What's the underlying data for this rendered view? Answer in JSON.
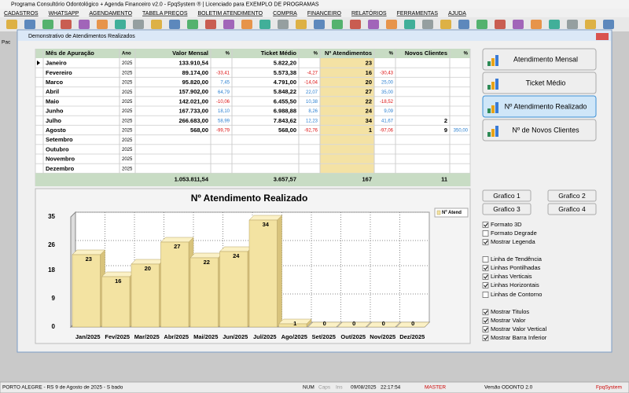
{
  "window": {
    "title": "Programa Consultório Odontológico + Agenda Financeiro v2.0 - FpqSystem ® | Licenciado para  EXEMPLO DE PROGRAMAS"
  },
  "menu": [
    "CADASTROS",
    "WHATSAPP",
    "AGENDAMENTO",
    "TABELA PREÇOS",
    "BOLETIM ATENDIMENTO",
    "COMPRA",
    "FINANCEIRO",
    "RELATÓRIOS",
    "FERRAMENTAS",
    "AJUDA"
  ],
  "toolbar_label": "Pac",
  "dialog": {
    "title": "Demonstrativo de Atendimentos Realizados"
  },
  "table": {
    "headers": [
      "Mês de Apuração",
      "Ano",
      "Valor Mensal",
      "%",
      "Ticket Médio",
      "%",
      "Nº Atendimentos",
      "%",
      "Novos Clientes",
      "%"
    ],
    "rows": [
      [
        "Janeiro",
        "2025",
        "133.910,54",
        null,
        "5.822,20",
        null,
        "23",
        null,
        null,
        null
      ],
      [
        "Fevereiro",
        "2025",
        "89.174,00",
        "-33,41",
        "5.573,38",
        "-4,27",
        "16",
        "-30,43",
        null,
        null
      ],
      [
        "Marco",
        "2025",
        "95.820,00",
        "7,45",
        "4.791,00",
        "-14,04",
        "20",
        "25,00",
        null,
        null
      ],
      [
        "Abril",
        "2025",
        "157.902,00",
        "64,79",
        "5.848,22",
        "22,07",
        "27",
        "35,00",
        null,
        null
      ],
      [
        "Maio",
        "2025",
        "142.021,00",
        "-10,06",
        "6.455,50",
        "10,38",
        "22",
        "-18,52",
        null,
        null
      ],
      [
        "Junho",
        "2025",
        "167.733,00",
        "18,10",
        "6.988,88",
        "8,26",
        "24",
        "9,09",
        null,
        null
      ],
      [
        "Julho",
        "2025",
        "266.683,00",
        "58,99",
        "7.843,62",
        "12,23",
        "34",
        "41,67",
        "2",
        null
      ],
      [
        "Agosto",
        "2025",
        "568,00",
        "-99,79",
        "568,00",
        "-92,76",
        "1",
        "-97,06",
        "9",
        "350,00"
      ],
      [
        "Setembro",
        "2025",
        null,
        null,
        null,
        null,
        null,
        null,
        null,
        null
      ],
      [
        "Outubro",
        "2025",
        null,
        null,
        null,
        null,
        null,
        null,
        null,
        null
      ],
      [
        "Novembro",
        "2025",
        null,
        null,
        null,
        null,
        null,
        null,
        null,
        null
      ],
      [
        "Dezembro",
        "2025",
        null,
        null,
        null,
        null,
        null,
        null,
        null,
        null
      ]
    ],
    "totals": [
      null,
      null,
      "1.053.811,54",
      null,
      "3.657,57",
      null,
      "167",
      null,
      "11",
      null
    ]
  },
  "chart_data": {
    "type": "bar",
    "title": "Nº Atendimento Realizado",
    "categories": [
      "Jan/2025",
      "Fev/2025",
      "Mar/2025",
      "Abr/2025",
      "Mai/2025",
      "Jun/2025",
      "Jul/2025",
      "Ago/2025",
      "Set/2025",
      "Out/2025",
      "Nov/2025",
      "Dez/2025"
    ],
    "series": [
      {
        "name": "Nº Atend",
        "color": "#f3e3a2",
        "values": [
          23,
          16,
          20,
          27,
          22,
          24,
          34,
          1,
          0,
          0,
          0,
          0
        ]
      }
    ],
    "ylim": [
      0,
      35
    ],
    "yticks": [
      0,
      9,
      18,
      26,
      35
    ],
    "grid": true,
    "legend": "top-right"
  },
  "buttons": [
    "Atendimento Mensal",
    "Ticket Médio",
    "Nº Atendimento Realizado",
    "Nº de Novos Clientes"
  ],
  "chart_buttons": [
    "Grafico 1",
    "Grafico 2",
    "Grafico 3",
    "Grafico 4"
  ],
  "options": [
    {
      "label": "Formato 3D",
      "checked": true
    },
    {
      "label": "Formato Degrade",
      "checked": false
    },
    {
      "label": "Mostrar Legenda",
      "checked": true
    },
    {
      "label": "Linha de Tendência",
      "checked": false
    },
    {
      "label": "Linhas Pontilhadas",
      "checked": true
    },
    {
      "label": "Linhas Verticais",
      "checked": true
    },
    {
      "label": "Linhas Horizontais",
      "checked": true
    },
    {
      "label": "Linhas de Contorno",
      "checked": false
    },
    {
      "label": "Mostrar Titulos",
      "checked": true
    },
    {
      "label": "Mostrar Valor",
      "checked": true
    },
    {
      "label": "Mostrar Valor Vertical",
      "checked": true
    },
    {
      "label": "Mostrar Barra Inferior",
      "checked": true
    }
  ],
  "status": [
    "PORTO ALEGRE - RS  9 de Agosto de 2025 - S bado",
    "NUM",
    "Caps",
    "Ins",
    "09/08/2025",
    "22:17:54",
    "MASTER",
    "Versão ODONTO 2.0",
    "FpqSystem"
  ]
}
